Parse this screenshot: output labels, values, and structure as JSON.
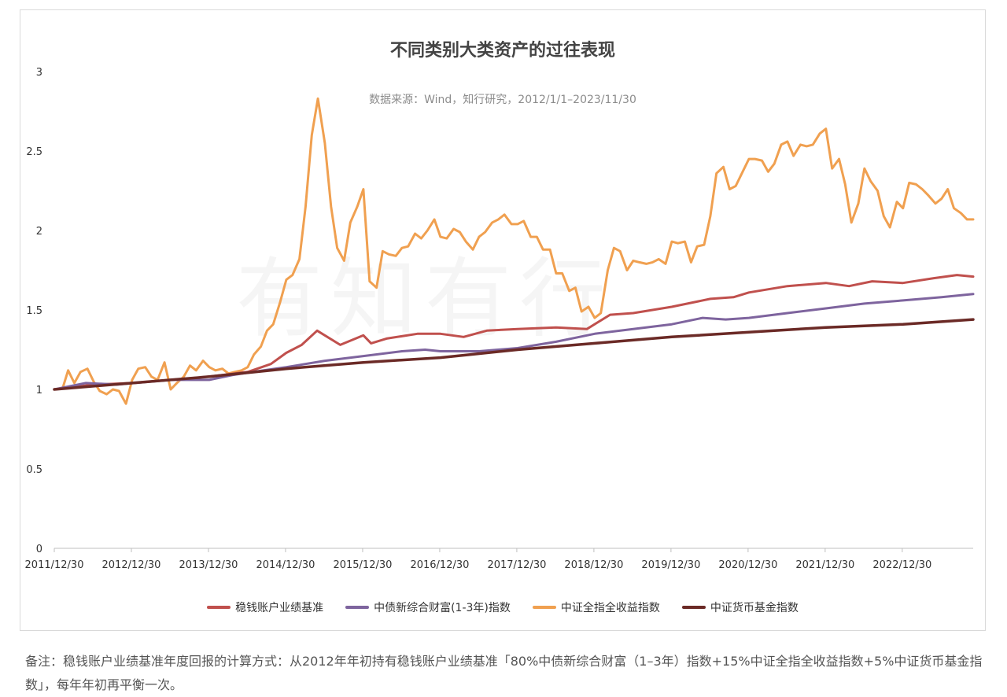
{
  "chart_data": {
    "type": "line",
    "title": "不同类别大类资产的过往表现",
    "subtitle": "数据来源：Wind，知行研究，2012/1/1–2023/11/30",
    "x_tick_labels": [
      "2011/12/30",
      "2012/12/30",
      "2013/12/30",
      "2014/12/30",
      "2015/12/30",
      "2016/12/30",
      "2017/12/30",
      "2018/12/30",
      "2019/12/30",
      "2020/12/30",
      "2021/12/30",
      "2022/12/30"
    ],
    "y_tick_labels": [
      "0",
      "0.5",
      "1",
      "1.5",
      "2",
      "2.5",
      "3"
    ],
    "ylim": [
      0,
      3
    ],
    "x_range_years": [
      2011.99,
      2023.91
    ],
    "legend_position": "bottom",
    "grid": false,
    "series": [
      {
        "name": "稳钱账户业绩基准",
        "color": "#c0504d",
        "points": [
          [
            2011.99,
            1.0
          ],
          [
            2012.5,
            1.03
          ],
          [
            2013.0,
            1.04
          ],
          [
            2013.5,
            1.06
          ],
          [
            2014.0,
            1.08
          ],
          [
            2014.5,
            1.11
          ],
          [
            2014.8,
            1.16
          ],
          [
            2015.0,
            1.23
          ],
          [
            2015.2,
            1.28
          ],
          [
            2015.4,
            1.37
          ],
          [
            2015.7,
            1.28
          ],
          [
            2016.0,
            1.34
          ],
          [
            2016.1,
            1.29
          ],
          [
            2016.3,
            1.32
          ],
          [
            2016.7,
            1.35
          ],
          [
            2017.0,
            1.35
          ],
          [
            2017.3,
            1.33
          ],
          [
            2017.6,
            1.37
          ],
          [
            2018.0,
            1.38
          ],
          [
            2018.5,
            1.39
          ],
          [
            2018.9,
            1.38
          ],
          [
            2019.2,
            1.47
          ],
          [
            2019.5,
            1.48
          ],
          [
            2020.0,
            1.52
          ],
          [
            2020.5,
            1.57
          ],
          [
            2020.8,
            1.58
          ],
          [
            2021.0,
            1.61
          ],
          [
            2021.5,
            1.65
          ],
          [
            2022.0,
            1.67
          ],
          [
            2022.3,
            1.65
          ],
          [
            2022.6,
            1.68
          ],
          [
            2023.0,
            1.67
          ],
          [
            2023.4,
            1.7
          ],
          [
            2023.7,
            1.72
          ],
          [
            2023.91,
            1.71
          ]
        ]
      },
      {
        "name": "中债新综合财富(1-3年)指数",
        "color": "#7e649e",
        "points": [
          [
            2011.99,
            1.0
          ],
          [
            2012.4,
            1.04
          ],
          [
            2012.8,
            1.03
          ],
          [
            2013.5,
            1.06
          ],
          [
            2014.0,
            1.06
          ],
          [
            2014.3,
            1.09
          ],
          [
            2014.7,
            1.12
          ],
          [
            2015.0,
            1.14
          ],
          [
            2015.5,
            1.18
          ],
          [
            2016.0,
            1.21
          ],
          [
            2016.5,
            1.24
          ],
          [
            2016.8,
            1.25
          ],
          [
            2017.0,
            1.24
          ],
          [
            2017.5,
            1.24
          ],
          [
            2018.0,
            1.26
          ],
          [
            2018.5,
            1.3
          ],
          [
            2019.0,
            1.35
          ],
          [
            2019.5,
            1.38
          ],
          [
            2020.0,
            1.41
          ],
          [
            2020.4,
            1.45
          ],
          [
            2020.7,
            1.44
          ],
          [
            2021.0,
            1.45
          ],
          [
            2021.5,
            1.48
          ],
          [
            2022.0,
            1.51
          ],
          [
            2022.5,
            1.54
          ],
          [
            2023.0,
            1.56
          ],
          [
            2023.5,
            1.58
          ],
          [
            2023.91,
            1.6
          ]
        ]
      },
      {
        "name": "中证全指全收益指数",
        "color": "#f0a050",
        "points": [
          [
            2011.99,
            1.0
          ],
          [
            2012.1,
            1.01
          ],
          [
            2012.17,
            1.12
          ],
          [
            2012.25,
            1.04
          ],
          [
            2012.33,
            1.11
          ],
          [
            2012.42,
            1.13
          ],
          [
            2012.5,
            1.05
          ],
          [
            2012.58,
            0.99
          ],
          [
            2012.67,
            0.97
          ],
          [
            2012.75,
            1.0
          ],
          [
            2012.83,
            0.99
          ],
          [
            2012.92,
            0.91
          ],
          [
            2013.0,
            1.06
          ],
          [
            2013.08,
            1.13
          ],
          [
            2013.17,
            1.14
          ],
          [
            2013.25,
            1.08
          ],
          [
            2013.33,
            1.06
          ],
          [
            2013.42,
            1.17
          ],
          [
            2013.5,
            1.0
          ],
          [
            2013.58,
            1.04
          ],
          [
            2013.67,
            1.08
          ],
          [
            2013.75,
            1.15
          ],
          [
            2013.83,
            1.12
          ],
          [
            2013.92,
            1.18
          ],
          [
            2014.0,
            1.14
          ],
          [
            2014.08,
            1.12
          ],
          [
            2014.17,
            1.13
          ],
          [
            2014.25,
            1.1
          ],
          [
            2014.33,
            1.11
          ],
          [
            2014.42,
            1.12
          ],
          [
            2014.5,
            1.14
          ],
          [
            2014.58,
            1.22
          ],
          [
            2014.67,
            1.27
          ],
          [
            2014.75,
            1.37
          ],
          [
            2014.83,
            1.41
          ],
          [
            2014.92,
            1.55
          ],
          [
            2015.0,
            1.69
          ],
          [
            2015.08,
            1.72
          ],
          [
            2015.17,
            1.82
          ],
          [
            2015.25,
            2.15
          ],
          [
            2015.33,
            2.6
          ],
          [
            2015.41,
            2.83
          ],
          [
            2015.5,
            2.55
          ],
          [
            2015.58,
            2.15
          ],
          [
            2015.66,
            1.89
          ],
          [
            2015.75,
            1.81
          ],
          [
            2015.83,
            2.05
          ],
          [
            2015.92,
            2.15
          ],
          [
            2016.0,
            2.26
          ],
          [
            2016.08,
            1.68
          ],
          [
            2016.17,
            1.64
          ],
          [
            2016.25,
            1.87
          ],
          [
            2016.33,
            1.85
          ],
          [
            2016.42,
            1.84
          ],
          [
            2016.5,
            1.89
          ],
          [
            2016.58,
            1.9
          ],
          [
            2016.67,
            1.98
          ],
          [
            2016.75,
            1.95
          ],
          [
            2016.83,
            2.0
          ],
          [
            2016.92,
            2.07
          ],
          [
            2017.0,
            1.96
          ],
          [
            2017.08,
            1.95
          ],
          [
            2017.17,
            2.01
          ],
          [
            2017.25,
            1.99
          ],
          [
            2017.33,
            1.93
          ],
          [
            2017.42,
            1.88
          ],
          [
            2017.5,
            1.96
          ],
          [
            2017.58,
            1.99
          ],
          [
            2017.67,
            2.05
          ],
          [
            2017.75,
            2.07
          ],
          [
            2017.83,
            2.1
          ],
          [
            2017.92,
            2.04
          ],
          [
            2018.0,
            2.04
          ],
          [
            2018.08,
            2.06
          ],
          [
            2018.17,
            1.96
          ],
          [
            2018.25,
            1.96
          ],
          [
            2018.33,
            1.88
          ],
          [
            2018.42,
            1.88
          ],
          [
            2018.5,
            1.73
          ],
          [
            2018.58,
            1.73
          ],
          [
            2018.67,
            1.62
          ],
          [
            2018.75,
            1.64
          ],
          [
            2018.83,
            1.49
          ],
          [
            2018.92,
            1.52
          ],
          [
            2019.0,
            1.45
          ],
          [
            2019.08,
            1.48
          ],
          [
            2019.17,
            1.75
          ],
          [
            2019.25,
            1.89
          ],
          [
            2019.33,
            1.87
          ],
          [
            2019.42,
            1.75
          ],
          [
            2019.5,
            1.81
          ],
          [
            2019.58,
            1.8
          ],
          [
            2019.67,
            1.79
          ],
          [
            2019.75,
            1.8
          ],
          [
            2019.83,
            1.82
          ],
          [
            2019.92,
            1.79
          ],
          [
            2020.0,
            1.93
          ],
          [
            2020.08,
            1.92
          ],
          [
            2020.17,
            1.93
          ],
          [
            2020.25,
            1.8
          ],
          [
            2020.33,
            1.9
          ],
          [
            2020.42,
            1.91
          ],
          [
            2020.5,
            2.09
          ],
          [
            2020.58,
            2.36
          ],
          [
            2020.67,
            2.4
          ],
          [
            2020.75,
            2.26
          ],
          [
            2020.83,
            2.28
          ],
          [
            2020.92,
            2.37
          ],
          [
            2021.0,
            2.45
          ],
          [
            2021.08,
            2.45
          ],
          [
            2021.17,
            2.44
          ],
          [
            2021.25,
            2.37
          ],
          [
            2021.33,
            2.42
          ],
          [
            2021.42,
            2.54
          ],
          [
            2021.5,
            2.56
          ],
          [
            2021.58,
            2.47
          ],
          [
            2021.67,
            2.54
          ],
          [
            2021.75,
            2.53
          ],
          [
            2021.83,
            2.54
          ],
          [
            2021.92,
            2.61
          ],
          [
            2022.0,
            2.64
          ],
          [
            2022.08,
            2.39
          ],
          [
            2022.17,
            2.45
          ],
          [
            2022.25,
            2.29
          ],
          [
            2022.33,
            2.05
          ],
          [
            2022.42,
            2.17
          ],
          [
            2022.5,
            2.39
          ],
          [
            2022.58,
            2.31
          ],
          [
            2022.67,
            2.25
          ],
          [
            2022.75,
            2.09
          ],
          [
            2022.83,
            2.02
          ],
          [
            2022.92,
            2.18
          ],
          [
            2023.0,
            2.14
          ],
          [
            2023.08,
            2.3
          ],
          [
            2023.17,
            2.29
          ],
          [
            2023.25,
            2.26
          ],
          [
            2023.33,
            2.22
          ],
          [
            2023.42,
            2.17
          ],
          [
            2023.5,
            2.2
          ],
          [
            2023.58,
            2.26
          ],
          [
            2023.66,
            2.14
          ],
          [
            2023.75,
            2.11
          ],
          [
            2023.83,
            2.07
          ],
          [
            2023.91,
            2.07
          ]
        ]
      },
      {
        "name": "中证货币基金指数",
        "color": "#6b2a26",
        "points": [
          [
            2011.99,
            1.0
          ],
          [
            2013.0,
            1.04
          ],
          [
            2014.0,
            1.08
          ],
          [
            2015.0,
            1.13
          ],
          [
            2016.0,
            1.17
          ],
          [
            2017.0,
            1.2
          ],
          [
            2018.0,
            1.25
          ],
          [
            2019.0,
            1.29
          ],
          [
            2020.0,
            1.33
          ],
          [
            2021.0,
            1.36
          ],
          [
            2022.0,
            1.39
          ],
          [
            2023.0,
            1.41
          ],
          [
            2023.91,
            1.44
          ]
        ]
      }
    ]
  },
  "note": "备注：稳钱账户业绩基准年度回报的计算方式：从2012年年初持有稳钱账户业绩基准「80%中债新综合财富（1–3年）指数+15%中证全指全收益指数+5%中证货币基金指数」，每年年初再平衡一次。",
  "watermark": "有知有行"
}
